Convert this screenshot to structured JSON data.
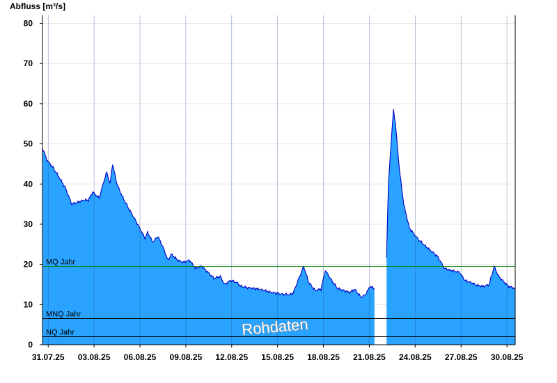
{
  "chart_data": {
    "type": "area",
    "ylabel": "Abfluss [m³/s]",
    "ylim": [
      0,
      82
    ],
    "y_ticks": [
      0,
      10,
      20,
      30,
      40,
      50,
      60,
      70,
      80
    ],
    "x_range": [
      "2025-07-30T15:00",
      "2025-08-30T13:00"
    ],
    "x_ticks": [
      "31.07.25",
      "03.08.25",
      "06.08.25",
      "09.08.25",
      "12.08.25",
      "15.08.25",
      "18.08.25",
      "21.08.25",
      "24.08.25",
      "27.08.25",
      "30.08.25"
    ],
    "x_tick_dates": [
      "2025-07-31",
      "2025-08-03",
      "2025-08-06",
      "2025-08-09",
      "2025-08-12",
      "2025-08-15",
      "2025-08-18",
      "2025-08-21",
      "2025-08-24",
      "2025-08-27",
      "2025-08-30"
    ],
    "grid": "horizontal",
    "colors": {
      "fill": "#29a3ff",
      "line": "#0000c8",
      "mq_line": "#008000",
      "nq_line": "#000000"
    },
    "series": [
      {
        "points": [
          [
            "2025-07-30T15:00",
            49
          ],
          [
            "2025-07-30T22:00",
            46
          ],
          [
            "2025-07-31T08:00",
            44
          ],
          [
            "2025-07-31T18:00",
            41.5
          ],
          [
            "2025-08-01T03:00",
            39
          ],
          [
            "2025-08-01T13:00",
            35
          ],
          [
            "2025-08-01T23:00",
            35.5
          ],
          [
            "2025-08-02T08:00",
            36
          ],
          [
            "2025-08-02T15:00",
            36
          ],
          [
            "2025-08-02T22:00",
            38
          ],
          [
            "2025-08-03T08:00",
            36.5
          ],
          [
            "2025-08-03T15:00",
            40.5
          ],
          [
            "2025-08-03T20:00",
            43
          ],
          [
            "2025-08-04T01:00",
            40
          ],
          [
            "2025-08-04T05:00",
            45
          ],
          [
            "2025-08-04T12:00",
            40
          ],
          [
            "2025-08-04T20:00",
            37
          ],
          [
            "2025-08-05T06:00",
            34
          ],
          [
            "2025-08-05T17:00",
            31
          ],
          [
            "2025-08-06T03:00",
            28
          ],
          [
            "2025-08-06T08:00",
            26.5
          ],
          [
            "2025-08-06T12:00",
            28
          ],
          [
            "2025-08-06T20:00",
            25.5
          ],
          [
            "2025-08-07T04:00",
            27
          ],
          [
            "2025-08-07T13:00",
            24
          ],
          [
            "2025-08-07T20:00",
            21
          ],
          [
            "2025-08-08T01:00",
            22.5
          ],
          [
            "2025-08-08T12:00",
            21
          ],
          [
            "2025-08-08T20:00",
            20.5
          ],
          [
            "2025-08-09T06:00",
            21
          ],
          [
            "2025-08-09T15:00",
            19
          ],
          [
            "2025-08-10T01:00",
            19.5
          ],
          [
            "2025-08-10T11:00",
            18
          ],
          [
            "2025-08-10T20:00",
            16.5
          ],
          [
            "2025-08-11T06:00",
            17
          ],
          [
            "2025-08-11T13:00",
            15
          ],
          [
            "2025-08-11T22:00",
            16
          ],
          [
            "2025-08-12T08:00",
            15.5
          ],
          [
            "2025-08-12T15:00",
            14.5
          ],
          [
            "2025-08-13T01:00",
            14.2
          ],
          [
            "2025-08-13T20:00",
            13.8
          ],
          [
            "2025-08-14T15:00",
            13
          ],
          [
            "2025-08-15T11:00",
            12.5
          ],
          [
            "2025-08-15T20:00",
            12.5
          ],
          [
            "2025-08-16T01:00",
            13
          ],
          [
            "2025-08-16T08:00",
            16
          ],
          [
            "2025-08-16T17:00",
            19.5
          ],
          [
            "2025-08-17T01:00",
            15.5
          ],
          [
            "2025-08-17T11:00",
            13.5
          ],
          [
            "2025-08-17T20:00",
            13.8
          ],
          [
            "2025-08-18T03:00",
            18.5
          ],
          [
            "2025-08-18T13:00",
            16
          ],
          [
            "2025-08-18T22:00",
            14
          ],
          [
            "2025-08-19T08:00",
            13.5
          ],
          [
            "2025-08-19T17:00",
            13
          ],
          [
            "2025-08-20T01:00",
            13.8
          ],
          [
            "2025-08-20T11:00",
            11.8
          ],
          [
            "2025-08-20T18:00",
            12.5
          ],
          [
            "2025-08-21T01:00",
            14.5
          ],
          [
            "2025-08-21T08:00",
            14
          ],
          null,
          [
            "2025-08-22T03:00",
            22
          ],
          [
            "2025-08-22T06:00",
            40
          ],
          [
            "2025-08-22T10:00",
            50
          ],
          [
            "2025-08-22T14:00",
            58.5
          ],
          [
            "2025-08-22T17:00",
            55
          ],
          [
            "2025-08-22T23:00",
            44
          ],
          [
            "2025-08-23T06:00",
            35
          ],
          [
            "2025-08-23T15:00",
            29
          ],
          [
            "2025-08-24T06:00",
            26
          ],
          [
            "2025-08-24T20:00",
            24
          ],
          [
            "2025-08-25T11:00",
            22
          ],
          [
            "2025-08-25T22:00",
            19
          ],
          [
            "2025-08-26T08:00",
            18.5
          ],
          [
            "2025-08-26T22:00",
            18
          ],
          [
            "2025-08-27T06:00",
            16
          ],
          [
            "2025-08-27T15:00",
            15.5
          ],
          [
            "2025-08-28T01:00",
            14.8
          ],
          [
            "2025-08-28T11:00",
            14.5
          ],
          [
            "2025-08-28T20:00",
            15
          ],
          [
            "2025-08-29T04:00",
            19.5
          ],
          [
            "2025-08-29T11:00",
            17
          ],
          [
            "2025-08-29T20:00",
            15.5
          ],
          [
            "2025-08-30T03:00",
            14.5
          ],
          [
            "2025-08-30T13:00",
            14
          ]
        ]
      }
    ],
    "reference_lines": [
      {
        "label": "MQ Jahr",
        "value": 19.5
      },
      {
        "label": "MNQ Jahr",
        "value": 6.5
      },
      {
        "label": "NQ Jahr",
        "value": 2
      }
    ],
    "annotation": "Rohdaten"
  }
}
